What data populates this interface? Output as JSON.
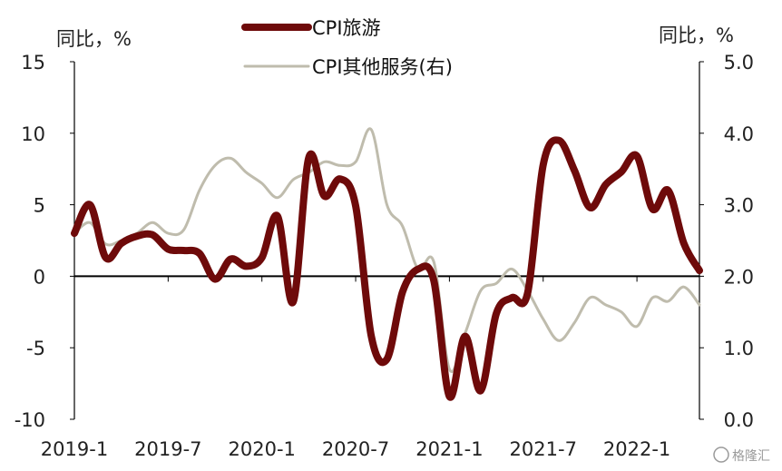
{
  "chart_data": {
    "type": "line",
    "left_axis_unit": "同比，%",
    "right_axis_unit": "同比，%",
    "left_ylim": [
      -10,
      15
    ],
    "right_ylim": [
      0.0,
      5.0
    ],
    "left_ticks": [
      "15",
      "10",
      "5",
      "0",
      "-5",
      "-10"
    ],
    "right_ticks": [
      "5.0",
      "4.0",
      "3.0",
      "2.0",
      "1.0",
      "0.0"
    ],
    "x_tick_labels": [
      "2019-1",
      "2019-7",
      "2020-1",
      "2020-7",
      "2021-1",
      "2021-7",
      "2022-1"
    ],
    "x_range": [
      "2019-1",
      "2022-5"
    ],
    "legend_position": "top-center",
    "series": [
      {
        "name": "CPI旅游",
        "axis": "left",
        "color": "#6e0a0a",
        "x": [
          "2019-1",
          "2019-2",
          "2019-3",
          "2019-4",
          "2019-5",
          "2019-6",
          "2019-7",
          "2019-8",
          "2019-9",
          "2019-10",
          "2019-11",
          "2019-12",
          "2020-1",
          "2020-2",
          "2020-3",
          "2020-4",
          "2020-5",
          "2020-6",
          "2020-7",
          "2020-8",
          "2020-9",
          "2020-10",
          "2020-11",
          "2020-12",
          "2021-1",
          "2021-2",
          "2021-3",
          "2021-4",
          "2021-5",
          "2021-6",
          "2021-7",
          "2021-8",
          "2021-9",
          "2021-10",
          "2021-11",
          "2021-12",
          "2022-1",
          "2022-2",
          "2022-3",
          "2022-4",
          "2022-5"
        ],
        "values": [
          3.0,
          5.0,
          1.3,
          2.3,
          2.8,
          2.9,
          1.9,
          1.8,
          1.6,
          -0.2,
          1.2,
          0.7,
          1.3,
          4.2,
          -1.8,
          8.3,
          5.6,
          6.8,
          4.9,
          -4.2,
          -5.8,
          -1.1,
          0.5,
          -0.3,
          -8.4,
          -4.2,
          -8.0,
          -2.6,
          -1.5,
          -1.2,
          7.8,
          9.5,
          7.4,
          4.8,
          6.4,
          7.3,
          8.4,
          4.7,
          6.0,
          2.3,
          0.4
        ]
      },
      {
        "name": "CPI其他服务(右)",
        "axis": "right",
        "color": "#bfbcad",
        "x": [
          "2019-1",
          "2019-2",
          "2019-3",
          "2019-4",
          "2019-5",
          "2019-6",
          "2019-7",
          "2019-8",
          "2019-9",
          "2019-10",
          "2019-11",
          "2019-12",
          "2020-1",
          "2020-2",
          "2020-3",
          "2020-4",
          "2020-5",
          "2020-6",
          "2020-7",
          "2020-8",
          "2020-9",
          "2020-10",
          "2020-11",
          "2020-12",
          "2021-1",
          "2021-2",
          "2021-3",
          "2021-4",
          "2021-5",
          "2021-6",
          "2021-7",
          "2021-8",
          "2021-9",
          "2021-10",
          "2021-11",
          "2021-12",
          "2022-1",
          "2022-2",
          "2022-3",
          "2022-4",
          "2022-5"
        ],
        "values": [
          2.6,
          2.75,
          2.45,
          2.5,
          2.6,
          2.75,
          2.6,
          2.65,
          3.2,
          3.55,
          3.65,
          3.45,
          3.3,
          3.1,
          3.35,
          3.45,
          3.6,
          3.55,
          3.6,
          4.05,
          3.0,
          2.7,
          2.1,
          2.2,
          0.7,
          1.2,
          1.8,
          1.9,
          2.1,
          1.8,
          1.4,
          1.1,
          1.35,
          1.7,
          1.6,
          1.5,
          1.3,
          1.7,
          1.65,
          1.85,
          1.6
        ]
      }
    ]
  },
  "watermark": "格隆汇"
}
